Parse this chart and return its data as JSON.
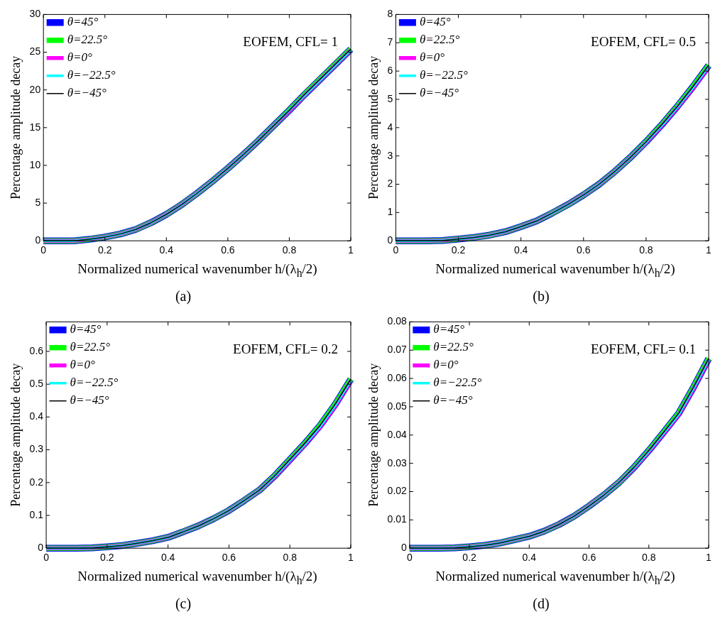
{
  "chart_data": [
    {
      "type": "line",
      "xlabel": "Normalized numerical wavenumber h/(λ$_{h}$/2)",
      "ylabel": "Percentage amplitude decay",
      "annotations": [
        "EOFEM, CFL= 1",
        "(a)"
      ],
      "legend": "top left",
      "marker": "none",
      "line_style": "solid",
      "xlim": [
        0,
        1
      ],
      "xticks": [
        0,
        0.2,
        0.4,
        0.6,
        0.8,
        1
      ],
      "ylim": [
        0,
        30
      ],
      "yticks": [
        0,
        5,
        10,
        15,
        20,
        25,
        30
      ],
      "x": [
        0,
        0.05,
        0.1,
        0.15,
        0.2,
        0.25,
        0.3,
        0.35,
        0.4,
        0.45,
        0.5,
        0.55,
        0.6,
        0.65,
        0.7,
        0.75,
        0.8,
        0.85,
        0.9,
        0.95,
        1
      ],
      "series": [
        {
          "name": "θ=45°",
          "color": "#0000ff",
          "values": [
            0,
            0,
            0,
            0.2,
            0.5,
            0.9,
            1.5,
            2.4,
            3.5,
            4.8,
            6.3,
            7.9,
            9.6,
            11.4,
            13.3,
            15.3,
            17.3,
            19.4,
            21.4,
            23.4,
            25.4
          ]
        },
        {
          "name": "θ=22.5°",
          "color": "#00ff00",
          "values": [
            0,
            0,
            0,
            0.2,
            0.5,
            0.9,
            1.5,
            2.4,
            3.5,
            4.8,
            6.3,
            7.9,
            9.6,
            11.4,
            13.3,
            15.3,
            17.3,
            19.4,
            21.4,
            23.4,
            25.4
          ]
        },
        {
          "name": "θ=0°",
          "color": "#ff00ff",
          "values": [
            0,
            0,
            0,
            0.2,
            0.5,
            0.9,
            1.5,
            2.4,
            3.5,
            4.8,
            6.3,
            7.9,
            9.6,
            11.4,
            13.3,
            15.3,
            17.2,
            19.3,
            21.3,
            23.3,
            25.3
          ]
        },
        {
          "name": "θ=−22.5°",
          "color": "#00ffff",
          "values": [
            0,
            0,
            0,
            0.2,
            0.5,
            0.9,
            1.5,
            2.4,
            3.5,
            4.8,
            6.3,
            7.9,
            9.6,
            11.4,
            13.3,
            15.3,
            17.3,
            19.3,
            21.3,
            23.3,
            25.3
          ]
        },
        {
          "name": "θ=−45°",
          "color": "#000000",
          "values": [
            0,
            0,
            0,
            0.2,
            0.5,
            0.9,
            1.5,
            2.4,
            3.5,
            4.8,
            6.3,
            7.9,
            9.6,
            11.4,
            13.3,
            15.3,
            17.3,
            19.4,
            21.4,
            23.4,
            25.4
          ]
        }
      ]
    },
    {
      "type": "line",
      "xlabel": "Normalized numerical wavenumber h/(λ$_{h}$/2)",
      "ylabel": "Percentage amplitude decay",
      "annotations": [
        "EOFEM, CFL= 0.5",
        "(b)"
      ],
      "legend": "top left",
      "marker": "none",
      "line_style": "solid",
      "xlim": [
        0,
        1
      ],
      "xticks": [
        0,
        0.2,
        0.4,
        0.6,
        0.8,
        1
      ],
      "ylim": [
        0,
        8
      ],
      "yticks": [
        0,
        1,
        2,
        3,
        4,
        5,
        6,
        7,
        8
      ],
      "x": [
        0,
        0.05,
        0.1,
        0.15,
        0.2,
        0.25,
        0.3,
        0.35,
        0.4,
        0.45,
        0.5,
        0.55,
        0.6,
        0.65,
        0.7,
        0.75,
        0.8,
        0.85,
        0.9,
        0.95,
        1
      ],
      "series": [
        {
          "name": "θ=45°",
          "color": "#0000ff",
          "values": [
            0,
            0,
            0,
            0.01,
            0.06,
            0.12,
            0.2,
            0.32,
            0.5,
            0.7,
            0.98,
            1.28,
            1.62,
            2,
            2.45,
            2.95,
            3.5,
            4.1,
            4.75,
            5.45,
            6.2
          ]
        },
        {
          "name": "θ=22.5°",
          "color": "#00ff00",
          "values": [
            0,
            0,
            0,
            0.01,
            0.06,
            0.12,
            0.2,
            0.32,
            0.5,
            0.7,
            0.98,
            1.28,
            1.62,
            2,
            2.45,
            2.95,
            3.5,
            4.1,
            4.75,
            5.45,
            6.2
          ]
        },
        {
          "name": "θ=0°",
          "color": "#ff00ff",
          "values": [
            0,
            0,
            0,
            0.01,
            0.06,
            0.12,
            0.2,
            0.32,
            0.5,
            0.7,
            0.98,
            1.28,
            1.62,
            2,
            2.45,
            2.95,
            3.48,
            4.07,
            4.72,
            5.4,
            6.15
          ]
        },
        {
          "name": "θ=−22.5°",
          "color": "#00ffff",
          "values": [
            0,
            0,
            0,
            0.01,
            0.06,
            0.12,
            0.2,
            0.32,
            0.5,
            0.7,
            0.98,
            1.28,
            1.62,
            2,
            2.45,
            2.95,
            3.49,
            4.08,
            4.73,
            5.42,
            6.17
          ]
        },
        {
          "name": "θ=−45°",
          "color": "#000000",
          "values": [
            0,
            0,
            0,
            0.01,
            0.06,
            0.12,
            0.2,
            0.32,
            0.5,
            0.7,
            0.98,
            1.28,
            1.62,
            2,
            2.45,
            2.95,
            3.5,
            4.1,
            4.75,
            5.45,
            6.2
          ]
        }
      ]
    },
    {
      "type": "line",
      "xlabel": "Normalized numerical wavenumber h/(λ$_{h}$/2)",
      "ylabel": "Percentage amplitude decay",
      "annotations": [
        "EOFEM, CFL= 0.2",
        "(c)"
      ],
      "legend": "top left",
      "marker": "none",
      "line_style": "solid",
      "xlim": [
        0,
        1
      ],
      "xticks": [
        0,
        0.2,
        0.4,
        0.6,
        0.8,
        1
      ],
      "ylim": [
        0,
        0.69
      ],
      "yticks": [
        0,
        0.1,
        0.2,
        0.3,
        0.4,
        0.5,
        0.6
      ],
      "x": [
        0,
        0.05,
        0.1,
        0.15,
        0.2,
        0.25,
        0.3,
        0.35,
        0.4,
        0.45,
        0.5,
        0.55,
        0.6,
        0.65,
        0.7,
        0.75,
        0.8,
        0.85,
        0.9,
        0.95,
        1
      ],
      "series": [
        {
          "name": "θ=45°",
          "color": "#0000ff",
          "values": [
            0,
            0,
            0,
            0.001,
            0.004,
            0.008,
            0.015,
            0.023,
            0.033,
            0.05,
            0.068,
            0.09,
            0.115,
            0.145,
            0.177,
            0.22,
            0.27,
            0.32,
            0.375,
            0.44,
            0.515
          ]
        },
        {
          "name": "θ=22.5°",
          "color": "#00ff00",
          "values": [
            0,
            0,
            0,
            0.001,
            0.004,
            0.008,
            0.015,
            0.023,
            0.033,
            0.05,
            0.068,
            0.09,
            0.115,
            0.145,
            0.177,
            0.22,
            0.27,
            0.32,
            0.375,
            0.44,
            0.515
          ]
        },
        {
          "name": "θ=0°",
          "color": "#ff00ff",
          "values": [
            0,
            0,
            0,
            0.001,
            0.004,
            0.008,
            0.015,
            0.023,
            0.033,
            0.05,
            0.068,
            0.09,
            0.115,
            0.145,
            0.177,
            0.218,
            0.267,
            0.317,
            0.37,
            0.435,
            0.51
          ]
        },
        {
          "name": "θ=−22.5°",
          "color": "#00ffff",
          "values": [
            0,
            0,
            0,
            0.001,
            0.004,
            0.008,
            0.015,
            0.023,
            0.033,
            0.05,
            0.068,
            0.09,
            0.115,
            0.145,
            0.177,
            0.219,
            0.268,
            0.318,
            0.372,
            0.437,
            0.512
          ]
        },
        {
          "name": "θ=−45°",
          "color": "#000000",
          "values": [
            0,
            0,
            0,
            0.001,
            0.004,
            0.008,
            0.015,
            0.023,
            0.033,
            0.05,
            0.068,
            0.09,
            0.115,
            0.145,
            0.177,
            0.22,
            0.27,
            0.32,
            0.375,
            0.44,
            0.515
          ]
        }
      ]
    },
    {
      "type": "line",
      "xlabel": "Normalized numerical wavenumber h/(λ$_{h}$/2)",
      "ylabel": "Percentage amplitude decay",
      "annotations": [
        "EOFEM, CFL= 0.1",
        "(d)"
      ],
      "legend": "top left",
      "marker": "none",
      "line_style": "solid",
      "xlim": [
        0,
        1
      ],
      "xticks": [
        0,
        0.2,
        0.4,
        0.6,
        0.8,
        1
      ],
      "ylim": [
        0,
        0.08
      ],
      "yticks": [
        0,
        0.01,
        0.02,
        0.03,
        0.04,
        0.05,
        0.06,
        0.07,
        0.08
      ],
      "x": [
        0,
        0.05,
        0.1,
        0.15,
        0.2,
        0.25,
        0.3,
        0.35,
        0.4,
        0.45,
        0.5,
        0.55,
        0.6,
        0.65,
        0.7,
        0.75,
        0.8,
        0.85,
        0.9,
        0.95,
        1
      ],
      "series": [
        {
          "name": "θ=45°",
          "color": "#0000ff",
          "values": [
            0,
            0,
            0,
            0.0001,
            0.0005,
            0.001,
            0.0018,
            0.003,
            0.0042,
            0.006,
            0.0084,
            0.0113,
            0.0149,
            0.0188,
            0.0232,
            0.0285,
            0.0345,
            0.041,
            0.0477,
            0.057,
            0.067
          ]
        },
        {
          "name": "θ=22.5°",
          "color": "#00ff00",
          "values": [
            0,
            0,
            0,
            0.0001,
            0.0005,
            0.001,
            0.0018,
            0.003,
            0.0042,
            0.006,
            0.0084,
            0.0113,
            0.0149,
            0.0188,
            0.0232,
            0.0285,
            0.0345,
            0.041,
            0.0477,
            0.057,
            0.067
          ]
        },
        {
          "name": "θ=0°",
          "color": "#ff00ff",
          "values": [
            0,
            0,
            0,
            0.0001,
            0.0005,
            0.001,
            0.0018,
            0.003,
            0.0042,
            0.006,
            0.0084,
            0.0113,
            0.0149,
            0.0188,
            0.0232,
            0.0283,
            0.0342,
            0.0406,
            0.0472,
            0.0565,
            0.0665
          ]
        },
        {
          "name": "θ=−22.5°",
          "color": "#00ffff",
          "values": [
            0,
            0,
            0,
            0.0001,
            0.0005,
            0.001,
            0.0018,
            0.003,
            0.0042,
            0.006,
            0.0084,
            0.0113,
            0.0149,
            0.0188,
            0.0232,
            0.0284,
            0.0343,
            0.0408,
            0.0474,
            0.0567,
            0.0667
          ]
        },
        {
          "name": "θ=−45°",
          "color": "#000000",
          "values": [
            0,
            0,
            0,
            0.0001,
            0.0005,
            0.001,
            0.0018,
            0.003,
            0.0042,
            0.006,
            0.0084,
            0.0113,
            0.0149,
            0.0188,
            0.0232,
            0.0285,
            0.0345,
            0.041,
            0.0477,
            0.057,
            0.067
          ]
        }
      ]
    }
  ]
}
